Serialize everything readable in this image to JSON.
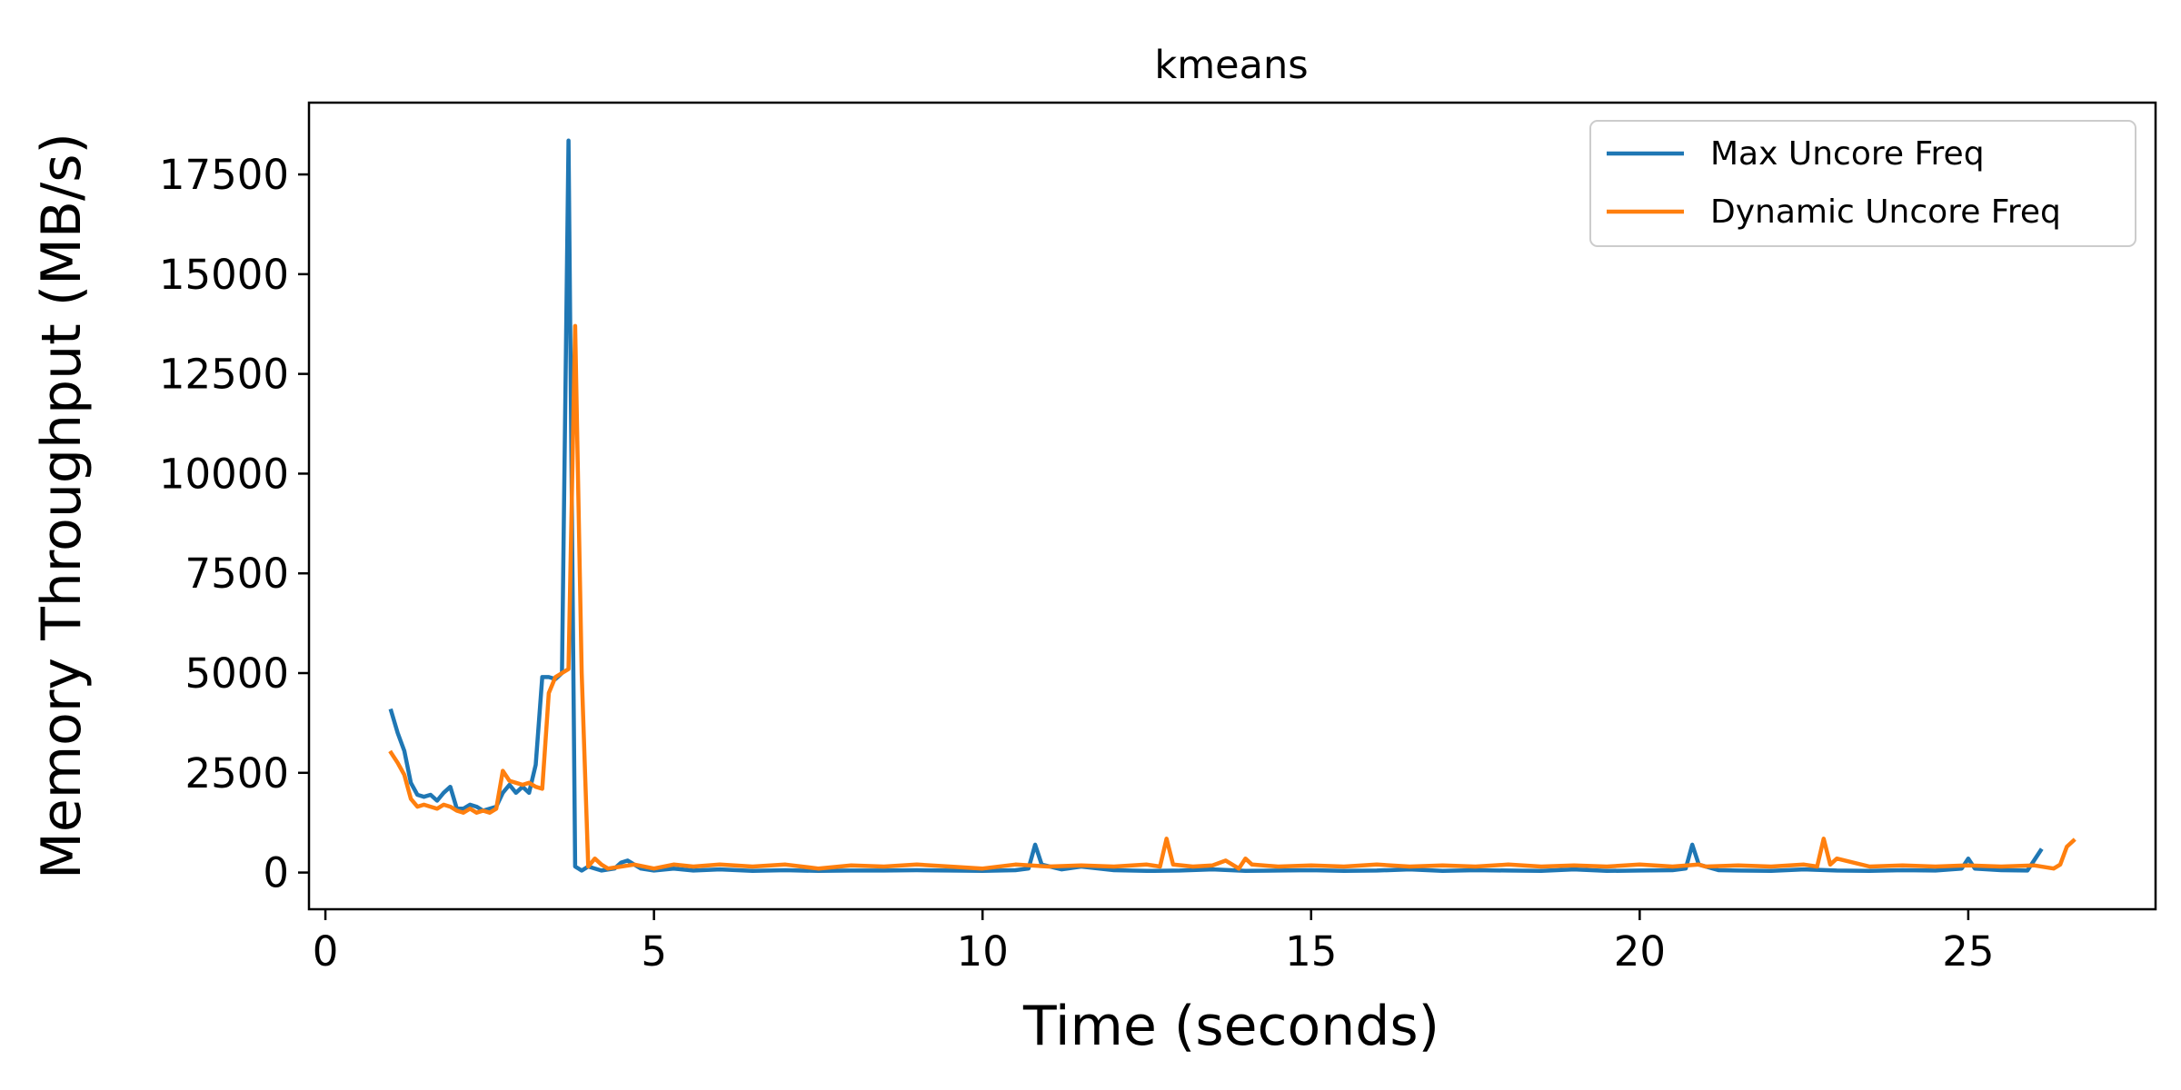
{
  "chart_data": {
    "type": "line",
    "title": "kmeans",
    "xlabel": "Time (seconds)",
    "ylabel": "Memory Throughput (MB/s)",
    "xlim": [
      -0.25,
      27.85
    ],
    "ylim": [
      -920,
      19300
    ],
    "xticks": [
      0,
      5,
      10,
      15,
      20,
      25
    ],
    "yticks": [
      0,
      2500,
      5000,
      7500,
      10000,
      12500,
      15000,
      17500
    ],
    "grid": false,
    "legend_position": "top-right",
    "series": [
      {
        "name": "Max Uncore Freq",
        "color": "#1f77b4",
        "x": [
          1.0,
          1.1,
          1.2,
          1.3,
          1.4,
          1.5,
          1.6,
          1.7,
          1.8,
          1.9,
          2.0,
          2.1,
          2.2,
          2.3,
          2.4,
          2.5,
          2.6,
          2.7,
          2.8,
          2.9,
          3.0,
          3.1,
          3.2,
          3.3,
          3.4,
          3.5,
          3.6,
          3.7,
          3.8,
          3.9,
          4.0,
          4.2,
          4.4,
          4.5,
          4.6,
          4.8,
          5.0,
          5.3,
          5.6,
          6.0,
          6.5,
          7.0,
          7.5,
          8.0,
          8.5,
          9.0,
          9.5,
          10.0,
          10.5,
          10.7,
          10.8,
          10.9,
          11.2,
          11.5,
          12.0,
          12.5,
          13.0,
          13.5,
          14.0,
          14.5,
          15.0,
          15.5,
          16.0,
          16.5,
          17.0,
          17.5,
          18.0,
          18.5,
          19.0,
          19.5,
          20.0,
          20.5,
          20.7,
          20.8,
          20.9,
          21.2,
          21.5,
          22.0,
          22.5,
          23.0,
          23.5,
          24.0,
          24.5,
          24.9,
          25.0,
          25.1,
          25.5,
          25.9,
          26.1
        ],
        "y": [
          4050,
          3500,
          3050,
          2250,
          1950,
          1900,
          1950,
          1800,
          2000,
          2150,
          1600,
          1600,
          1700,
          1650,
          1550,
          1600,
          1650,
          2000,
          2200,
          2000,
          2150,
          2000,
          2700,
          4900,
          4900,
          4850,
          5000,
          18350,
          150,
          50,
          150,
          50,
          100,
          250,
          300,
          100,
          50,
          100,
          50,
          80,
          40,
          60,
          40,
          50,
          50,
          60,
          50,
          40,
          60,
          100,
          700,
          200,
          80,
          150,
          60,
          40,
          50,
          80,
          40,
          50,
          60,
          40,
          50,
          80,
          40,
          60,
          50,
          40,
          80,
          40,
          50,
          60,
          100,
          700,
          200,
          60,
          50,
          40,
          80,
          50,
          40,
          60,
          50,
          100,
          350,
          100,
          60,
          50,
          550
        ]
      },
      {
        "name": "Dynamic Uncore Freq",
        "color": "#ff7f0e",
        "x": [
          1.0,
          1.1,
          1.2,
          1.3,
          1.4,
          1.5,
          1.6,
          1.7,
          1.8,
          1.9,
          2.0,
          2.1,
          2.2,
          2.3,
          2.4,
          2.5,
          2.6,
          2.7,
          2.8,
          2.9,
          3.0,
          3.1,
          3.2,
          3.3,
          3.4,
          3.5,
          3.6,
          3.7,
          3.8,
          3.9,
          4.0,
          4.1,
          4.2,
          4.3,
          4.5,
          4.7,
          5.0,
          5.3,
          5.6,
          6.0,
          6.5,
          7.0,
          7.5,
          8.0,
          8.5,
          9.0,
          9.5,
          10.0,
          10.5,
          11.0,
          11.5,
          12.0,
          12.5,
          12.7,
          12.8,
          12.9,
          13.2,
          13.5,
          13.7,
          13.9,
          14.0,
          14.1,
          14.5,
          15.0,
          15.5,
          16.0,
          16.5,
          17.0,
          17.5,
          18.0,
          18.5,
          19.0,
          19.5,
          20.0,
          20.5,
          20.9,
          21.0,
          21.5,
          22.0,
          22.5,
          22.7,
          22.8,
          22.9,
          23.0,
          23.5,
          24.0,
          24.5,
          25.0,
          25.5,
          26.0,
          26.3,
          26.4,
          26.5,
          26.6
        ],
        "y": [
          3000,
          2750,
          2450,
          1850,
          1650,
          1700,
          1650,
          1600,
          1700,
          1650,
          1550,
          1500,
          1600,
          1500,
          1550,
          1500,
          1600,
          2550,
          2300,
          2250,
          2200,
          2250,
          2150,
          2100,
          4500,
          4900,
          5000,
          5100,
          13700,
          5000,
          150,
          350,
          200,
          100,
          150,
          200,
          100,
          200,
          150,
          200,
          150,
          200,
          100,
          180,
          150,
          200,
          150,
          100,
          200,
          150,
          180,
          150,
          200,
          150,
          850,
          200,
          150,
          180,
          300,
          100,
          350,
          200,
          150,
          180,
          150,
          200,
          150,
          180,
          150,
          200,
          150,
          180,
          150,
          200,
          150,
          200,
          150,
          180,
          150,
          200,
          150,
          850,
          200,
          350,
          150,
          180,
          150,
          180,
          150,
          180,
          100,
          200,
          650,
          800
        ]
      }
    ]
  }
}
